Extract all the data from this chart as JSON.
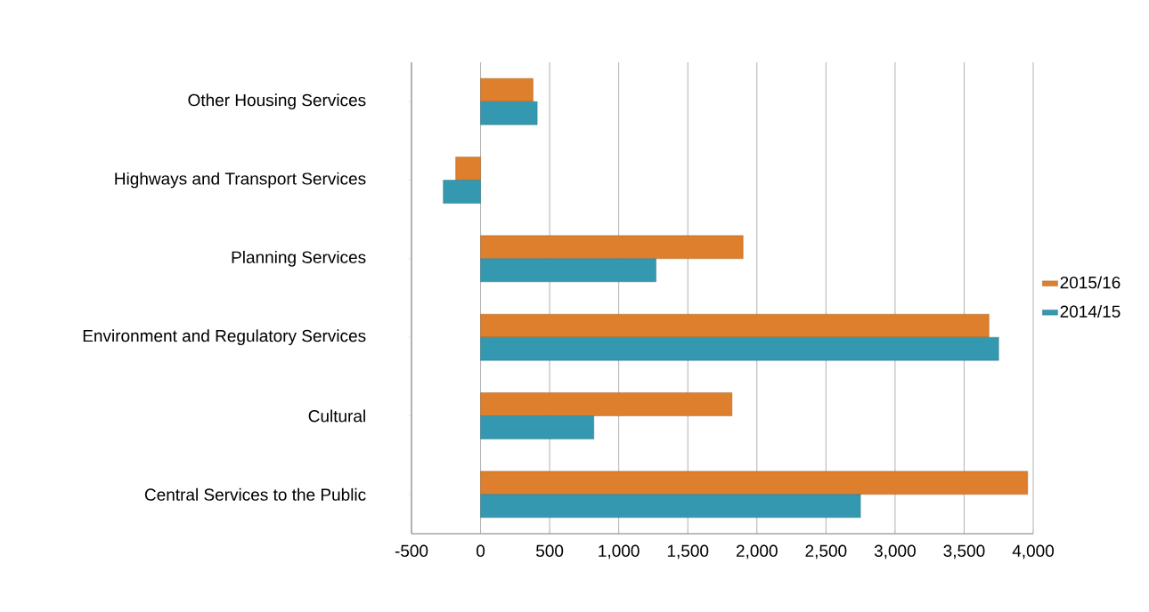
{
  "chart_data": {
    "type": "bar",
    "orientation": "horizontal",
    "categories": [
      "Other Housing Services",
      "Highways and Transport Services",
      "Planning Services",
      "Environment and Regulatory Services",
      "Cultural",
      "Central Services to the Public"
    ],
    "series": [
      {
        "name": "2015/16",
        "color": "#dd7f2c",
        "values": [
          380,
          -180,
          1900,
          3680,
          1820,
          3960
        ]
      },
      {
        "name": "2014/15",
        "color": "#3398b0",
        "values": [
          410,
          -270,
          1270,
          3750,
          820,
          2750
        ]
      }
    ],
    "xlim": [
      -500,
      4000
    ],
    "xticks": [
      -500,
      0,
      {
        "value": 500,
        "label": "500"
      },
      {
        "value": 1000,
        "label": "1,000"
      },
      {
        "value": 1500,
        "label": "1,500"
      },
      {
        "value": 2000,
        "label": "2,000"
      },
      {
        "value": 2500,
        "label": "2,500"
      },
      {
        "value": 3000,
        "label": "3,000"
      },
      {
        "value": 3500,
        "label": "3,500"
      },
      {
        "value": 4000,
        "label": "4,000"
      }
    ],
    "grid": "x",
    "legend": "right"
  }
}
